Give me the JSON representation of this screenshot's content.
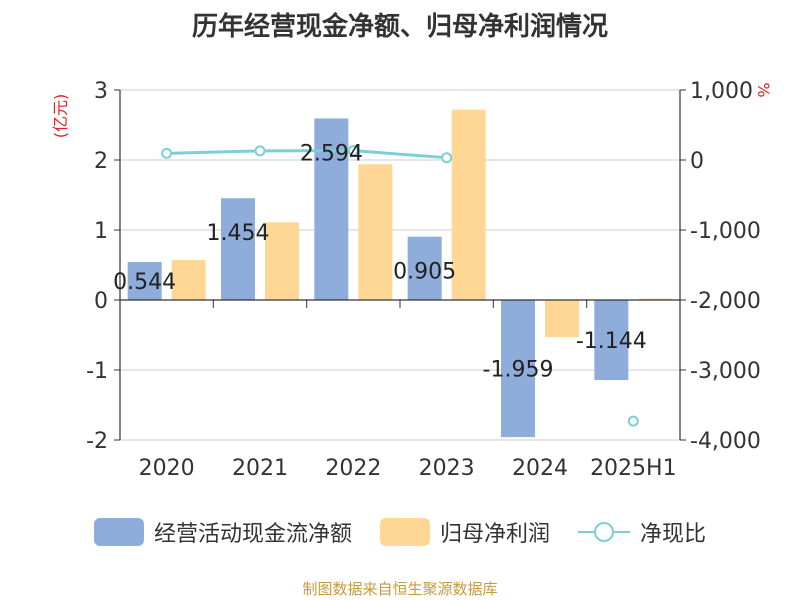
{
  "title": "历年经营现金净额、归母净利润情况",
  "source": "制图数据来自恒生聚源数据库",
  "chart_data": {
    "type": "bar",
    "categories": [
      "2020",
      "2021",
      "2022",
      "2023",
      "2024",
      "2025H1"
    ],
    "left_axis": {
      "label": "(亿元)",
      "min": -2,
      "max": 3,
      "ticks": [
        "-2",
        "-1",
        "0",
        "1",
        "2",
        "3"
      ]
    },
    "right_axis": {
      "label": "%",
      "min": -4000,
      "max": 1000,
      "ticks": [
        "-4,000",
        "-3,000",
        "-2,000",
        "-1,000",
        "0",
        "1,000"
      ]
    },
    "series": [
      {
        "name": "经营活动现金流净额",
        "type": "bar",
        "axis": "left",
        "color": "#8eadda",
        "values": [
          0.544,
          1.454,
          2.594,
          0.905,
          -1.959,
          -1.144
        ],
        "labels": [
          "0.544",
          "1.454",
          "2.594",
          "0.905",
          "-1.959",
          "-1.144"
        ]
      },
      {
        "name": "归母净利润",
        "type": "bar",
        "axis": "left",
        "color": "#ffd795",
        "values": [
          0.57,
          1.11,
          1.94,
          2.72,
          -0.53,
          0.02
        ]
      },
      {
        "name": "净现比",
        "type": "line",
        "axis": "right",
        "color": "#7ccfd6",
        "values": [
          95,
          130,
          134,
          33,
          null,
          -3730
        ]
      }
    ],
    "grid": true,
    "legend_position": "bottom"
  }
}
